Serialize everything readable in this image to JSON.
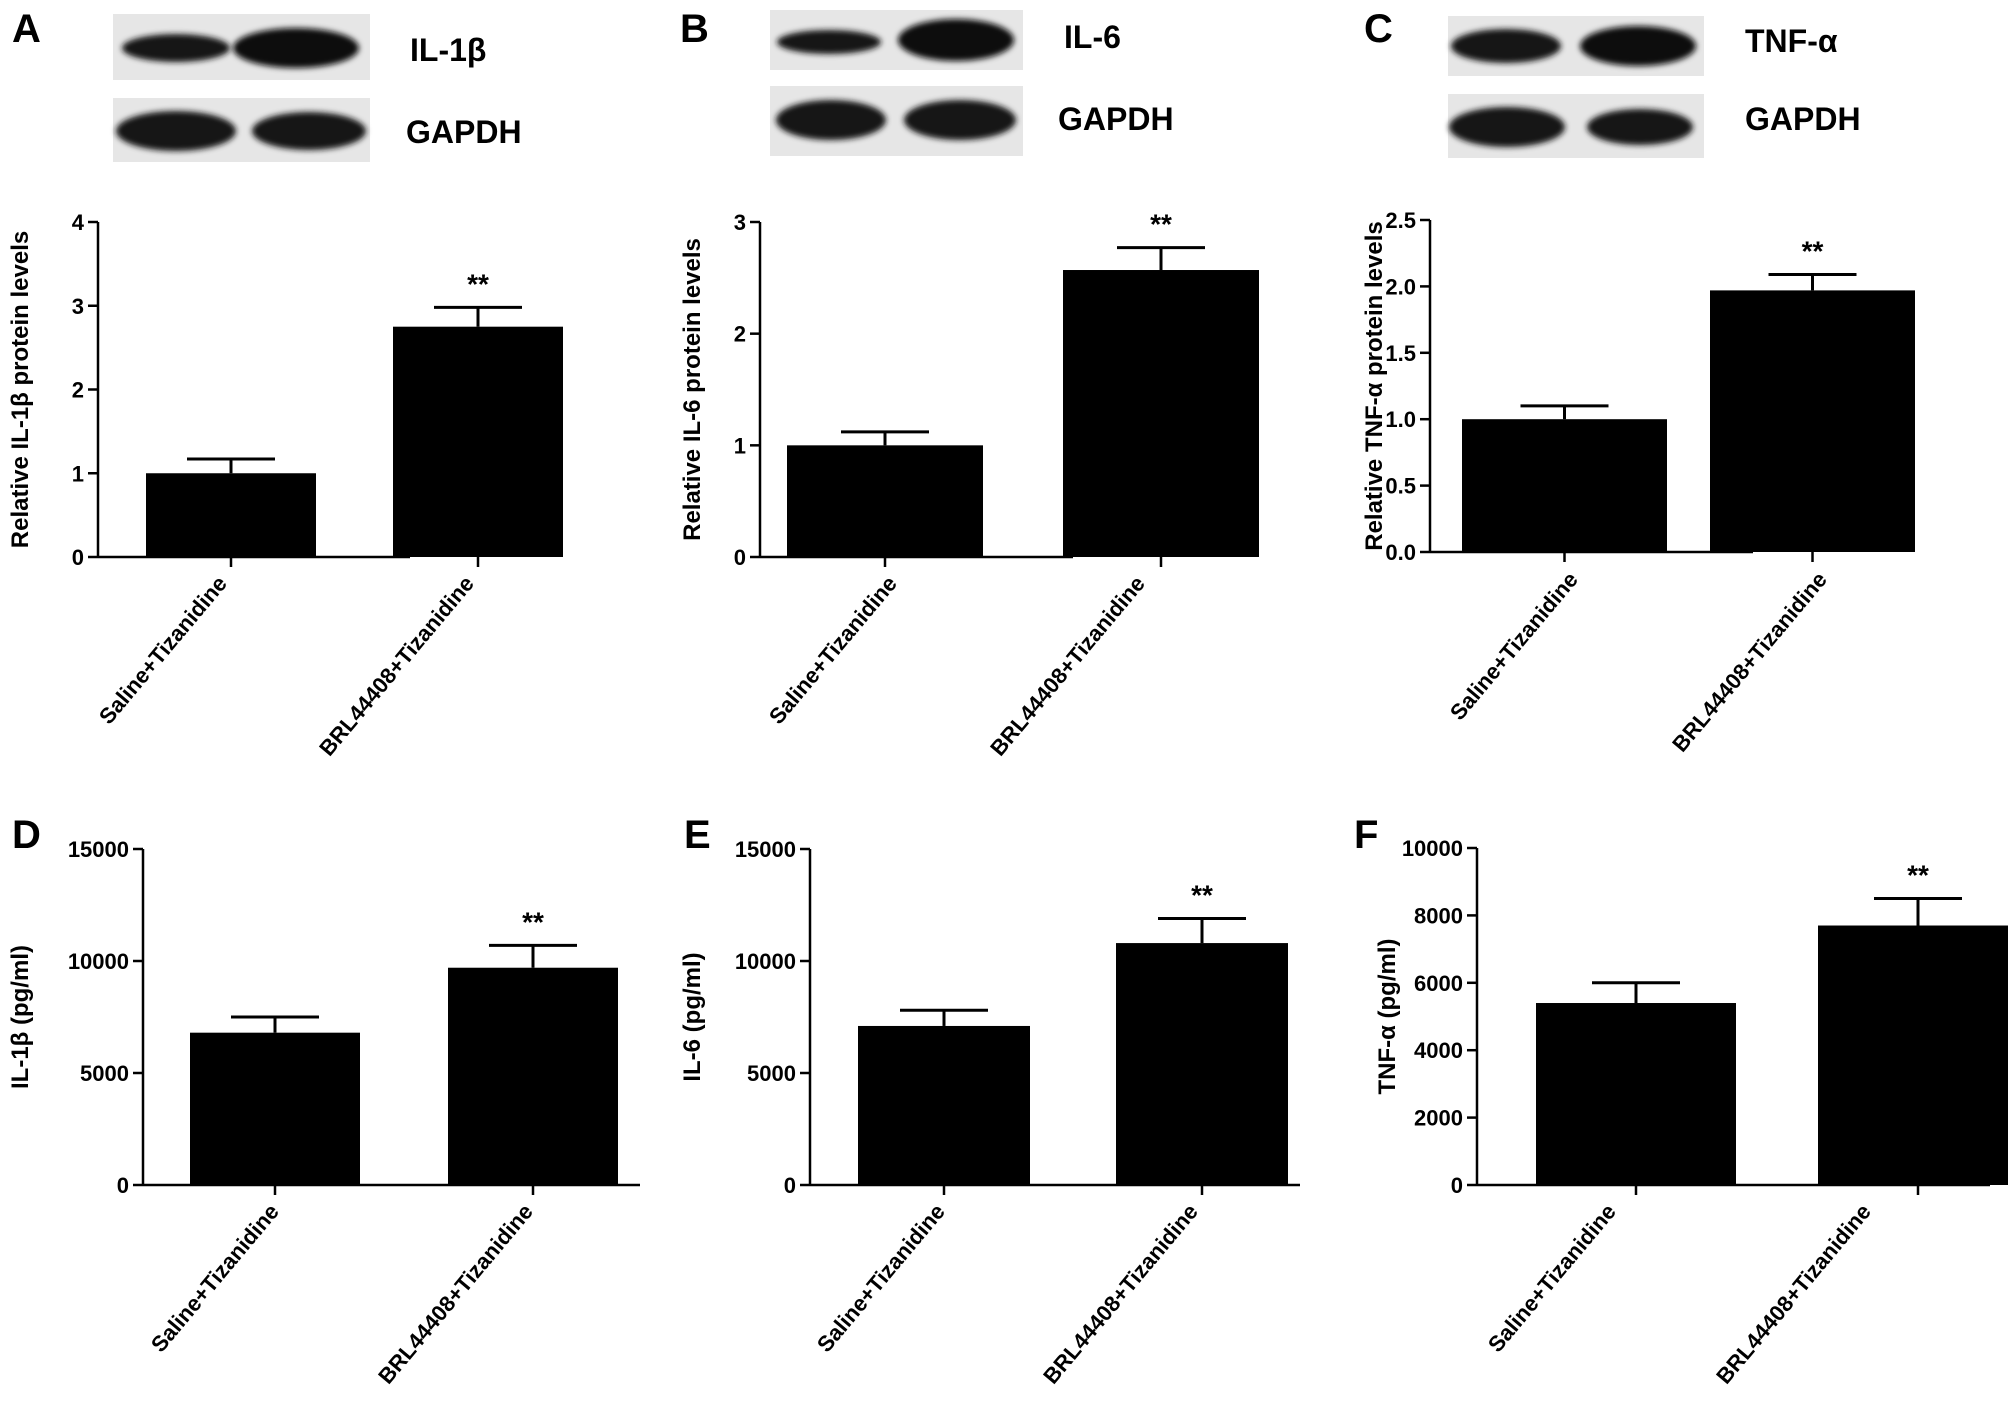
{
  "figure": {
    "panels": [
      {
        "letter": "A",
        "blot": {
          "target_label": "IL-1β",
          "control_label": "GAPDH"
        }
      },
      {
        "letter": "B",
        "blot": {
          "target_label": "IL-6",
          "control_label": "GAPDH"
        }
      },
      {
        "letter": "C",
        "blot": {
          "target_label": "TNF-α",
          "control_label": "GAPDH"
        }
      },
      {
        "letter": "D"
      },
      {
        "letter": "E"
      },
      {
        "letter": "F"
      }
    ]
  },
  "chart_data": [
    {
      "panel": "A",
      "type": "bar",
      "categories": [
        "Saline+Tizanidine",
        "BRL44408+Tizanidine"
      ],
      "values": [
        1.0,
        2.75
      ],
      "errors": [
        0.17,
        0.23
      ],
      "significance": [
        "",
        "**"
      ],
      "xlabel": "",
      "ylabel": "Relative IL-1β protein levels",
      "ylim": [
        0,
        4
      ],
      "yticks": [
        0,
        1,
        2,
        3,
        4
      ],
      "ytick_labels": [
        "0",
        "1",
        "2",
        "3",
        "4"
      ]
    },
    {
      "panel": "B",
      "type": "bar",
      "categories": [
        "Saline+Tizanidine",
        "BRL44408+Tizanidine"
      ],
      "values": [
        1.0,
        2.57
      ],
      "errors": [
        0.12,
        0.2
      ],
      "significance": [
        "",
        "**"
      ],
      "xlabel": "",
      "ylabel": "Relative IL-6 protein levels",
      "ylim": [
        0,
        3
      ],
      "yticks": [
        0,
        1,
        2,
        3
      ],
      "ytick_labels": [
        "0",
        "1",
        "2",
        "3"
      ]
    },
    {
      "panel": "C",
      "type": "bar",
      "categories": [
        "Saline+Tizanidine",
        "BRL44408+Tizanidine"
      ],
      "values": [
        1.0,
        1.97
      ],
      "errors": [
        0.1,
        0.12
      ],
      "significance": [
        "",
        "**"
      ],
      "xlabel": "",
      "ylabel": "Relative TNF-α protein levels",
      "ylim": [
        0,
        2.5
      ],
      "yticks": [
        0,
        0.5,
        1,
        1.5,
        2,
        2.5
      ],
      "ytick_labels": [
        "0.0",
        "0.5",
        "1.0",
        "1.5",
        "2.0",
        "2.5"
      ]
    },
    {
      "panel": "D",
      "type": "bar",
      "categories": [
        "Saline+Tizanidine",
        "BRL44408+Tizanidine"
      ],
      "values": [
        6800,
        9700
      ],
      "errors": [
        700,
        1000
      ],
      "significance": [
        "",
        "**"
      ],
      "xlabel": "",
      "ylabel": "IL-1β (pg/ml)",
      "ylim": [
        0,
        15000
      ],
      "yticks": [
        0,
        5000,
        10000,
        15000
      ],
      "ytick_labels": [
        "0",
        "5000",
        "10000",
        "15000"
      ]
    },
    {
      "panel": "E",
      "type": "bar",
      "categories": [
        "Saline+Tizanidine",
        "BRL44408+Tizanidine"
      ],
      "values": [
        7100,
        10800
      ],
      "errors": [
        700,
        1100
      ],
      "significance": [
        "",
        "**"
      ],
      "xlabel": "",
      "ylabel": "IL-6 (pg/ml)",
      "ylim": [
        0,
        15000
      ],
      "yticks": [
        0,
        5000,
        10000,
        15000
      ],
      "ytick_labels": [
        "0",
        "5000",
        "10000",
        "15000"
      ]
    },
    {
      "panel": "F",
      "type": "bar",
      "categories": [
        "Saline+Tizanidine",
        "BRL44408+Tizanidine"
      ],
      "values": [
        5400,
        7700
      ],
      "errors": [
        600,
        800
      ],
      "significance": [
        "",
        "**"
      ],
      "xlabel": "",
      "ylabel": "TNF-α (pg/ml)",
      "ylim": [
        0,
        10000
      ],
      "yticks": [
        0,
        2000,
        4000,
        6000,
        8000,
        10000
      ],
      "ytick_labels": [
        "0",
        "2000",
        "4000",
        "6000",
        "8000",
        "10000"
      ]
    }
  ]
}
